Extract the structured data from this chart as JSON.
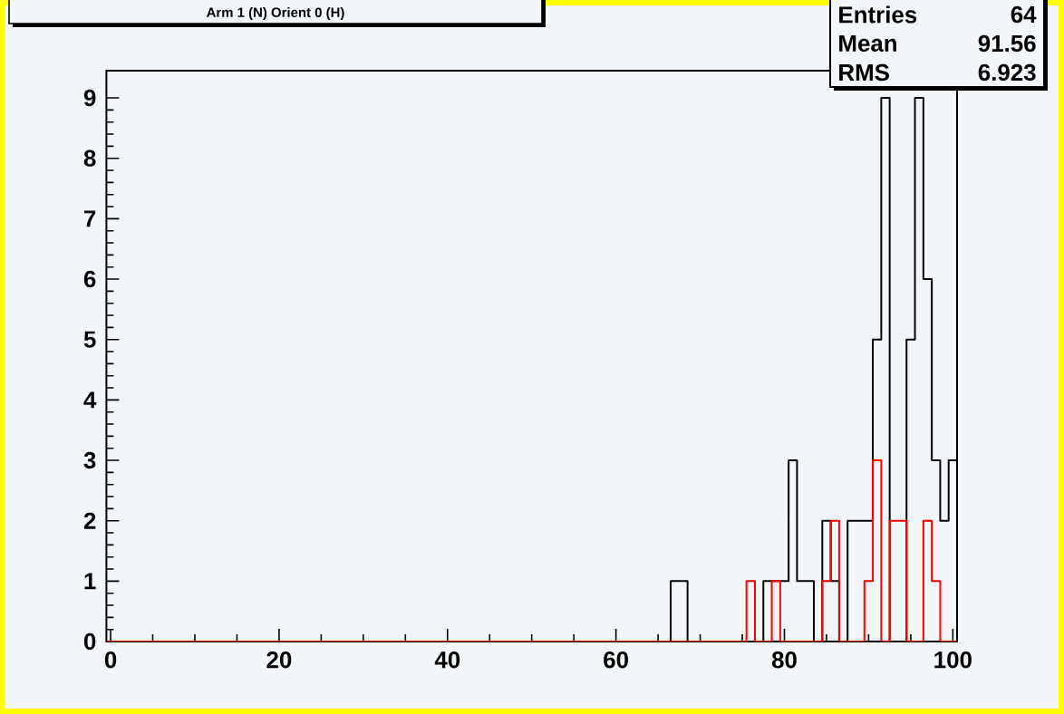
{
  "chart_data": {
    "type": "histogram",
    "title": "Arm 1 (N) Orient 0 (H)",
    "bins": [
      -0.5,
      0.5,
      1.5,
      2.5,
      3.5,
      4.5,
      5.5,
      6.5,
      7.5,
      8.5,
      9.5,
      10.5,
      11.5,
      12.5,
      13.5,
      14.5,
      15.5,
      16.5,
      17.5,
      18.5,
      19.5,
      20.5,
      21.5,
      22.5,
      23.5,
      24.5,
      25.5,
      26.5,
      27.5,
      28.5,
      29.5,
      30.5,
      31.5,
      32.5,
      33.5,
      34.5,
      35.5,
      36.5,
      37.5,
      38.5,
      39.5,
      40.5,
      41.5,
      42.5,
      43.5,
      44.5,
      45.5,
      46.5,
      47.5,
      48.5,
      49.5,
      50.5,
      51.5,
      52.5,
      53.5,
      54.5,
      55.5,
      56.5,
      57.5,
      58.5,
      59.5,
      60.5,
      61.5,
      62.5,
      63.5,
      64.5,
      65.5,
      66.5,
      67.5,
      68.5,
      69.5,
      70.5,
      71.5,
      72.5,
      73.5,
      74.5,
      75.5,
      76.5,
      77.5,
      78.5,
      79.5,
      80.5,
      81.5,
      82.5,
      83.5,
      84.5,
      85.5,
      86.5,
      87.5,
      88.5,
      89.5,
      90.5,
      91.5,
      92.5,
      93.5,
      94.5,
      95.5,
      96.5,
      97.5,
      98.5,
      99.5,
      100.5
    ],
    "series": [
      {
        "color": "#000000",
        "values": [
          0,
          0,
          0,
          0,
          0,
          0,
          0,
          0,
          0,
          0,
          0,
          0,
          0,
          0,
          0,
          0,
          0,
          0,
          0,
          0,
          0,
          0,
          0,
          0,
          0,
          0,
          0,
          0,
          0,
          0,
          0,
          0,
          0,
          0,
          0,
          0,
          0,
          0,
          0,
          0,
          0,
          0,
          0,
          0,
          0,
          0,
          0,
          0,
          0,
          0,
          0,
          0,
          0,
          0,
          0,
          0,
          0,
          0,
          0,
          0,
          0,
          0,
          0,
          0,
          0,
          0,
          0,
          1,
          1,
          0,
          0,
          0,
          0,
          0,
          0,
          0,
          0,
          0,
          1,
          1,
          1,
          3,
          1,
          1,
          0,
          2,
          1,
          0,
          2,
          2,
          2,
          5,
          9,
          0,
          0,
          5,
          9,
          6,
          3,
          2,
          3
        ]
      },
      {
        "color": "#ff0000",
        "values": [
          0,
          0,
          0,
          0,
          0,
          0,
          0,
          0,
          0,
          0,
          0,
          0,
          0,
          0,
          0,
          0,
          0,
          0,
          0,
          0,
          0,
          0,
          0,
          0,
          0,
          0,
          0,
          0,
          0,
          0,
          0,
          0,
          0,
          0,
          0,
          0,
          0,
          0,
          0,
          0,
          0,
          0,
          0,
          0,
          0,
          0,
          0,
          0,
          0,
          0,
          0,
          0,
          0,
          0,
          0,
          0,
          0,
          0,
          0,
          0,
          0,
          0,
          0,
          0,
          0,
          0,
          0,
          0,
          0,
          0,
          0,
          0,
          0,
          0,
          0,
          0,
          1,
          0,
          0,
          1,
          0,
          0,
          0,
          0,
          0,
          1,
          2,
          0,
          0,
          0,
          1,
          3,
          0,
          2,
          2,
          0,
          0,
          2,
          1,
          0,
          0
        ]
      }
    ],
    "xlim": [
      -0.5,
      100.5
    ],
    "xticks": [
      0,
      20,
      40,
      60,
      80,
      100
    ],
    "ylim": [
      0,
      9.45
    ],
    "yticks": [
      0,
      1,
      2,
      3,
      4,
      5,
      6,
      7,
      8,
      9
    ],
    "annotations": [
      "Entries",
      "64",
      "Mean",
      "91.56",
      "RMS",
      "6.923"
    ]
  }
}
